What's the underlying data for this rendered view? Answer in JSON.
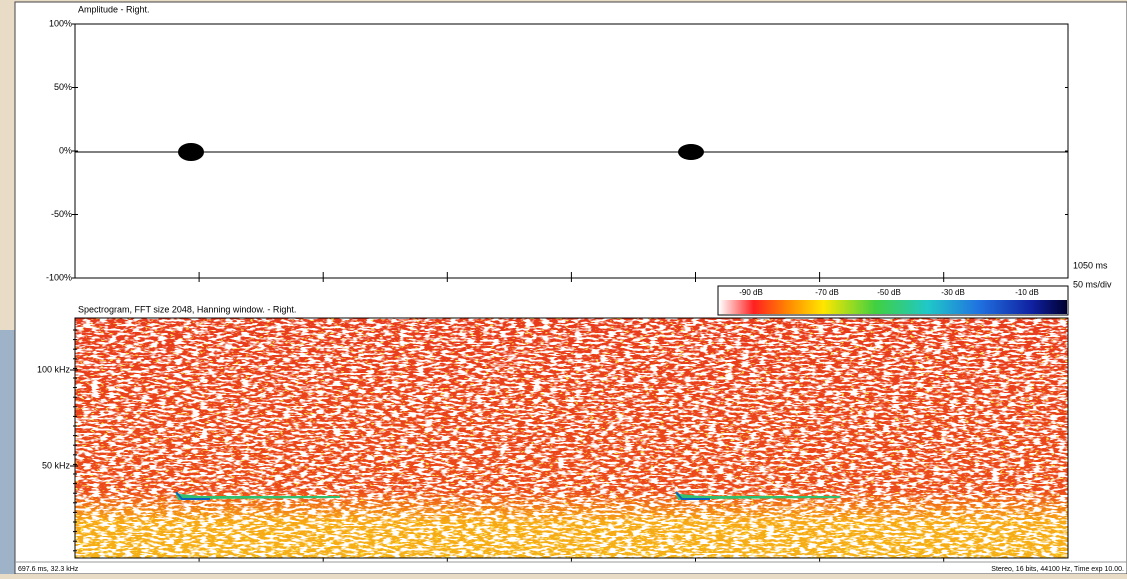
{
  "amplitude": {
    "title": "Amplitude - Right.",
    "yticks": [
      "100%",
      "50%",
      "0%",
      "-50%",
      "-100%"
    ]
  },
  "time_info": {
    "span": "1050 ms",
    "scale": "50 ms/div"
  },
  "colorbar": {
    "labels": [
      "-90 dB",
      "-70 dB",
      "-50 dB",
      "-30 dB",
      "-10 dB"
    ]
  },
  "spectrogram": {
    "title": "Spectrogram, FFT size 2048, Hanning window. - Right.",
    "yticks": [
      "100 kHz",
      "50 kHz"
    ]
  },
  "status": {
    "left": "697.6 ms, 32.3 kHz",
    "right": "Stereo, 16 bits, 44100 Hz, Time exp 10.00."
  }
}
